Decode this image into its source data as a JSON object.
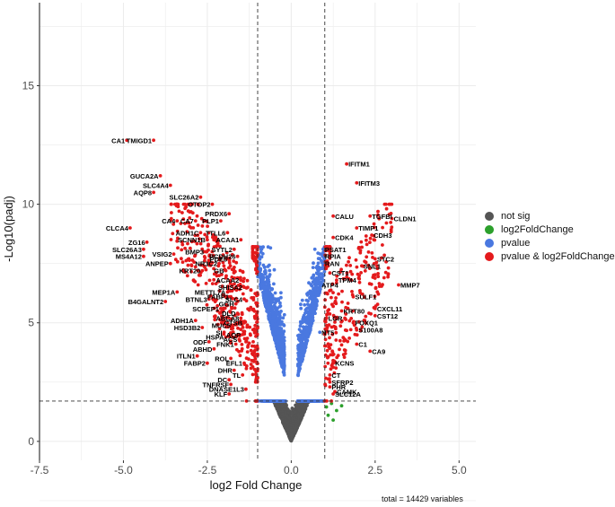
{
  "chart_data": {
    "type": "scatter",
    "xlabel": "log2 Fold Change",
    "ylabel": "-Log10(padj)",
    "xlim": [
      -7.5,
      5.5
    ],
    "ylim": [
      -0.8,
      18.5
    ],
    "x_ticks": [
      -7.5,
      -5.0,
      -2.5,
      0.0,
      2.5,
      5.0
    ],
    "x_tick_labels": [
      "-7.5",
      "-5.0",
      "-2.5",
      "0.0",
      "2.5",
      "5.0"
    ],
    "y_ticks": [
      0,
      5,
      10,
      15
    ],
    "y_tick_labels": [
      "0",
      "5",
      "10",
      "15"
    ],
    "fc_cutoffs": [
      -1,
      1
    ],
    "p_cutoff": 1.7,
    "grid": true,
    "legend_position": "right",
    "legend": [
      {
        "key": "not_sig",
        "label": "not sig",
        "color": "#555555"
      },
      {
        "key": "fc",
        "label": "log2FoldChange",
        "color": "#2ca02c"
      },
      {
        "key": "p",
        "label": "pvalue",
        "color": "#4a78e0"
      },
      {
        "key": "both",
        "label": "pvalue & log2FoldChange",
        "color": "#e41a1c"
      }
    ],
    "caption": "total = 14429 variables",
    "labeled_genes": [
      {
        "label": "CA1",
        "x": -4.9,
        "y": 12.7
      },
      {
        "label": "TMIGD1",
        "x": -4.1,
        "y": 12.7
      },
      {
        "label": "GUCA2A",
        "x": -3.9,
        "y": 11.2
      },
      {
        "label": "SLC4A4",
        "x": -3.6,
        "y": 10.8
      },
      {
        "label": "AQP8",
        "x": -4.1,
        "y": 10.5
      },
      {
        "label": "SLC26A2",
        "x": -2.7,
        "y": 10.3
      },
      {
        "label": "OTOP2",
        "x": -2.35,
        "y": 10.0
      },
      {
        "label": "PRDX6",
        "x": -1.85,
        "y": 9.6
      },
      {
        "label": "PLP1",
        "x": -2.1,
        "y": 9.3
      },
      {
        "label": "CLCA4",
        "x": -4.8,
        "y": 9.0
      },
      {
        "label": "CA4",
        "x": -3.4,
        "y": 9.3
      },
      {
        "label": "CA7",
        "x": -2.85,
        "y": 9.3
      },
      {
        "label": "ADH1C",
        "x": -2.7,
        "y": 8.8
      },
      {
        "label": "TTLL6",
        "x": -1.9,
        "y": 8.8
      },
      {
        "label": "SCNN1B",
        "x": -2.5,
        "y": 8.5
      },
      {
        "label": "ACAA1",
        "x": -1.5,
        "y": 8.5
      },
      {
        "label": "ZG16",
        "x": -4.3,
        "y": 8.4
      },
      {
        "label": "SLC26A3",
        "x": -4.4,
        "y": 8.1
      },
      {
        "label": "BMP3",
        "x": -2.55,
        "y": 8.0
      },
      {
        "label": "SYTL2",
        "x": -1.7,
        "y": 8.1
      },
      {
        "label": "MS4A12",
        "x": -4.4,
        "y": 7.8
      },
      {
        "label": "VSIG2",
        "x": -3.5,
        "y": 7.9
      },
      {
        "label": "PCDH26",
        "x": -1.6,
        "y": 7.8
      },
      {
        "label": "PDE6",
        "x": -1.85,
        "y": 7.7
      },
      {
        "label": "ANPEP",
        "x": -3.6,
        "y": 7.5
      },
      {
        "label": "NR3C2",
        "x": -2.15,
        "y": 7.5
      },
      {
        "label": "KRT20",
        "x": -2.65,
        "y": 7.2
      },
      {
        "label": "GB",
        "x": -1.95,
        "y": 7.2
      },
      {
        "label": "ACAA2",
        "x": -1.5,
        "y": 6.8
      },
      {
        "label": "SHISA2",
        "x": -1.4,
        "y": 6.5
      },
      {
        "label": "MEP1A",
        "x": -3.4,
        "y": 6.3
      },
      {
        "label": "METTL7A",
        "x": -1.9,
        "y": 6.3
      },
      {
        "label": "FABP1",
        "x": -1.8,
        "y": 6.1
      },
      {
        "label": "BTNL3",
        "x": -2.45,
        "y": 6.0
      },
      {
        "label": "B4GALNT2",
        "x": -3.75,
        "y": 5.9
      },
      {
        "label": "SLC4",
        "x": -1.4,
        "y": 6.0
      },
      {
        "label": "GGH",
        "x": -1.65,
        "y": 5.8
      },
      {
        "label": "SCPEP1",
        "x": -2.1,
        "y": 5.6
      },
      {
        "label": "DLD",
        "x": -1.6,
        "y": 5.4
      },
      {
        "label": "ABCA8",
        "x": -1.5,
        "y": 5.2
      },
      {
        "label": "CTSB",
        "x": -1.4,
        "y": 5.0
      },
      {
        "label": "ADH1A",
        "x": -2.85,
        "y": 5.1
      },
      {
        "label": "MUC5",
        "x": -1.75,
        "y": 4.9
      },
      {
        "label": "HSD3B2",
        "x": -2.65,
        "y": 4.8
      },
      {
        "label": "SI",
        "x": -2.0,
        "y": 4.6
      },
      {
        "label": "AQP",
        "x": -1.45,
        "y": 4.5
      },
      {
        "label": "HSPA",
        "x": -1.95,
        "y": 4.4
      },
      {
        "label": "ACS",
        "x": -1.55,
        "y": 4.3
      },
      {
        "label": "ODF",
        "x": -2.45,
        "y": 4.2
      },
      {
        "label": "FNK1",
        "x": -1.65,
        "y": 4.1
      },
      {
        "label": "ABHD",
        "x": -2.3,
        "y": 3.9
      },
      {
        "label": "ITLN1",
        "x": -2.8,
        "y": 3.6
      },
      {
        "label": "ROL",
        "x": -1.8,
        "y": 3.5
      },
      {
        "label": "FABP2",
        "x": -2.5,
        "y": 3.3
      },
      {
        "label": "EFL1",
        "x": -1.4,
        "y": 3.3
      },
      {
        "label": "DHR",
        "x": -1.7,
        "y": 3.0
      },
      {
        "label": "TL",
        "x": -1.45,
        "y": 2.8
      },
      {
        "label": "DC",
        "x": -1.85,
        "y": 2.6
      },
      {
        "label": "TNFRSF",
        "x": -1.8,
        "y": 2.4
      },
      {
        "label": "DNASE1L3",
        "x": -1.35,
        "y": 2.2
      },
      {
        "label": "KLF",
        "x": -1.85,
        "y": 2.0
      },
      {
        "label": "IFITM1",
        "x": 1.65,
        "y": 11.7
      },
      {
        "label": "IFITM3",
        "x": 1.95,
        "y": 10.9
      },
      {
        "label": "CALU",
        "x": 1.25,
        "y": 9.5
      },
      {
        "label": "TGFBI",
        "x": 2.35,
        "y": 9.5
      },
      {
        "label": "CLDN1",
        "x": 3.0,
        "y": 9.4
      },
      {
        "label": "TIMP1",
        "x": 1.95,
        "y": 9.0
      },
      {
        "label": "CDH3",
        "x": 2.4,
        "y": 8.7
      },
      {
        "label": "CDK4",
        "x": 1.25,
        "y": 8.6
      },
      {
        "label": "PSAT1",
        "x": 0.95,
        "y": 8.1
      },
      {
        "label": "RPIA",
        "x": 0.95,
        "y": 7.8
      },
      {
        "label": "STC2",
        "x": 2.5,
        "y": 7.7
      },
      {
        "label": "RAN",
        "x": 0.95,
        "y": 7.5
      },
      {
        "label": "SNL1",
        "x": 2.1,
        "y": 7.4
      },
      {
        "label": "CST1",
        "x": 1.15,
        "y": 7.1
      },
      {
        "label": "TPM4",
        "x": 1.35,
        "y": 6.8
      },
      {
        "label": "MMP7",
        "x": 3.2,
        "y": 6.6
      },
      {
        "label": "ATP4",
        "x": 0.85,
        "y": 6.6
      },
      {
        "label": "SULF1",
        "x": 1.85,
        "y": 6.1
      },
      {
        "label": "CXCL11",
        "x": 2.5,
        "y": 5.6
      },
      {
        "label": "CST12",
        "x": 2.5,
        "y": 5.3
      },
      {
        "label": "KRT80",
        "x": 1.5,
        "y": 5.5
      },
      {
        "label": "LGR",
        "x": 1.05,
        "y": 5.2
      },
      {
        "label": "FOXQ1",
        "x": 1.85,
        "y": 5.0
      },
      {
        "label": "NT5",
        "x": 0.85,
        "y": 4.6
      },
      {
        "label": "S100A8",
        "x": 1.95,
        "y": 4.7
      },
      {
        "label": "C1",
        "x": 1.95,
        "y": 4.1
      },
      {
        "label": "CA9",
        "x": 2.35,
        "y": 3.8
      },
      {
        "label": "KCNS",
        "x": 1.25,
        "y": 3.3
      },
      {
        "label": "CT",
        "x": 1.15,
        "y": 2.8
      },
      {
        "label": "SFRP2",
        "x": 1.15,
        "y": 2.5
      },
      {
        "label": "PHR",
        "x": 1.15,
        "y": 2.3
      },
      {
        "label": "SLC12A",
        "x": 1.25,
        "y": 2.0
      },
      {
        "label": "CAMK",
        "x": 1.3,
        "y": 2.1
      }
    ]
  }
}
